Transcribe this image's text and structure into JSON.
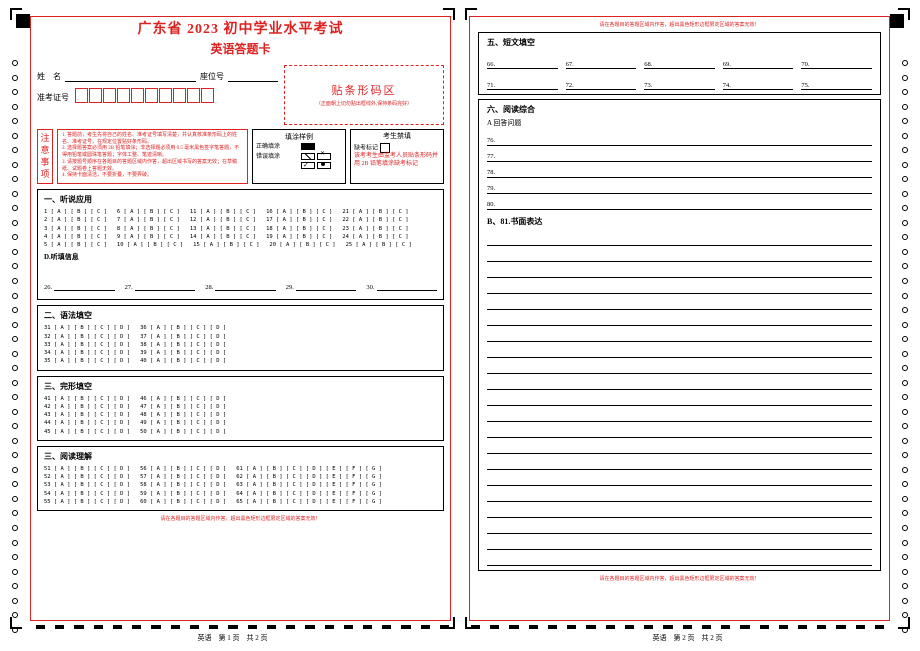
{
  "colors": {
    "red": "#d22",
    "black": "#000000",
    "white": "#ffffff"
  },
  "page1": {
    "title": "广东省 2023 初中学业水平考试",
    "subtitle": "英语答题卡",
    "name_label": "姓　名",
    "seat_label": "座位号",
    "admit_label": "准考证号",
    "admit_box_count": 10,
    "barcode_title": "贴条形码区",
    "barcode_sub": "（正面朝上切勿贴出框线外,保持条码完好）",
    "instr_block_label": "注意事项",
    "instructions": "1. 答题前，考生先将自己的姓名、准考证号填写清楚，并认真核准条形码上的姓名、准考证号，在规定位置贴好条形码。\n2. 选择题答案必须用 2B 铅笔填涂；非选择题必须用 0.5 毫米黑色签字笔答题，不得用铅笔或圆珠笔答题；字体工整、笔迹清晰。\n3. 请按题号顺序在各题目的答题区域内作答，超出区域书写的答案无效；在草稿纸、试题卷上答题无效。\n4. 保持卡面清洁，不要折叠，不要弄破。",
    "fill_sample": {
      "header": "填涂样例",
      "correct_label": "正确填涂",
      "wrong_label": "错误填涂"
    },
    "forbid": {
      "header": "考生禁填",
      "absent_label": "缺考标记",
      "note": "该考考生由监考人员贴条形码并用 2B 铅笔填涂缺考标记"
    },
    "s1": {
      "title": "一、听说应用",
      "letters3": "[ A ] [ B ] [ C ]",
      "groups": [
        [
          1,
          2,
          3,
          4,
          5
        ],
        [
          6,
          7,
          8,
          9,
          10
        ],
        [
          11,
          12,
          13,
          14,
          15
        ],
        [
          16,
          17,
          18,
          19,
          20
        ],
        [
          21,
          22,
          23,
          24,
          25
        ]
      ]
    },
    "d_title": "D.听填信息",
    "d_nums": [
      26,
      27,
      28,
      29,
      30
    ],
    "s2": {
      "title": "二、语法填空",
      "letters4": "[ A ] [ B ] [ C ] [ D ]",
      "col1": [
        31,
        32,
        33,
        34,
        35
      ],
      "col2": [
        36,
        37,
        38,
        39,
        40
      ]
    },
    "s3": {
      "title": "三、完形填空",
      "letters4": "[ A ] [ B ] [ C ] [ D ]",
      "col1": [
        41,
        42,
        43,
        44,
        45
      ],
      "col2": [
        46,
        47,
        48,
        49,
        50
      ]
    },
    "s4": {
      "title": "三、阅读理解",
      "letters4": "[ A ] [ B ] [ C ] [ D ]",
      "letters7": "[ A ] [ B ] [ C ] [ D ] [ E ] [ F ] [ G ]",
      "c1": [
        51,
        52,
        53,
        54,
        55
      ],
      "c2": [
        56,
        57,
        58,
        59,
        60
      ],
      "c3": [
        61,
        62,
        63,
        64,
        65
      ]
    },
    "bottom_warn": "请在各题目的答题区域内作答，超出黑色矩形边框限定区域的答案无效！",
    "footer": "英语　第 1 页　共 2 页"
  },
  "page2": {
    "top_warn": "请在各题目的答题区域内作答，超出黑色矩形边框限定区域的答案无效！",
    "s5_title": "五、短文填空",
    "s5_rows": [
      [
        66,
        67,
        68,
        69,
        70
      ],
      [
        71,
        72,
        73,
        74,
        75
      ]
    ],
    "s6_title": "六、阅读综合",
    "s6_sub": "A 回答问题",
    "s6_nums": [
      76,
      77,
      78,
      79,
      80
    ],
    "s7_title": "B、81.书面表达",
    "essay_line_count": 21,
    "bottom_warn": "请在各题目的答题区域内作答，超出黑色矩形边框限定区域的答案无效！",
    "footer": "英语　第 2 页　共 2 页"
  }
}
